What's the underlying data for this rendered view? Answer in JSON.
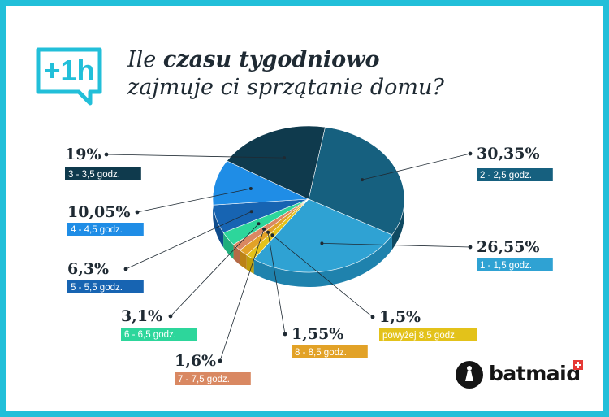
{
  "badge": {
    "text": "+1h",
    "color": "#22bfd9"
  },
  "title": {
    "line1_prefix": "Ile ",
    "line1_bold": "czasu tygodniowo",
    "line2": "zajmuje ci sprzątanie domu?"
  },
  "brand": {
    "name": "batmaid",
    "accent": "#e53935"
  },
  "chart_data": {
    "type": "pie",
    "title": "Ile czasu tygodniowo zajmuje ci sprzątanie domu?",
    "slices": [
      {
        "value": 30.35,
        "value_label": "30,35%",
        "category": "2 - 2,5 godz.",
        "color": "#16607f",
        "side": "#0f4a62",
        "catbg": "#16607f"
      },
      {
        "value": 26.55,
        "value_label": "26,55%",
        "category": "1 - 1,5 godz.",
        "color": "#2fa2d3",
        "side": "#1f82ad",
        "catbg": "#2fa2d3"
      },
      {
        "value": 1.5,
        "value_label": "1,5%",
        "category": "powyżej 8,5 godz.",
        "color": "#e3c21a",
        "side": "#bf9f0c",
        "catbg": "#e3c21a"
      },
      {
        "value": 1.55,
        "value_label": "1,55%",
        "category": "8 - 8,5 godz.",
        "color": "#e2a227",
        "side": "#bb8216",
        "catbg": "#e2a227"
      },
      {
        "value": 1.6,
        "value_label": "1,6%",
        "category": "7 - 7,5 godz.",
        "color": "#d98862",
        "side": "#b46a46",
        "catbg": "#d98862"
      },
      {
        "value": 3.1,
        "value_label": "3,1%",
        "category": "6 - 6,5 godz.",
        "color": "#2dd69b",
        "side": "#1fae7c",
        "catbg": "#2dd69b"
      },
      {
        "value": 6.3,
        "value_label": "6,3%",
        "category": "5 - 5,5 godz.",
        "color": "#1764b2",
        "side": "#0f4c8c",
        "catbg": "#1764b2"
      },
      {
        "value": 10.05,
        "value_label": "10,05%",
        "category": "4 - 4,5 godz.",
        "color": "#1f8de6",
        "side": "#156fbb",
        "catbg": "#1f8de6"
      },
      {
        "value": 19,
        "value_label": "19%",
        "category": "3 - 3,5 godz.",
        "color": "#0f3a4d",
        "side": "#0a2a39",
        "catbg": "#0f3a4d"
      }
    ]
  }
}
